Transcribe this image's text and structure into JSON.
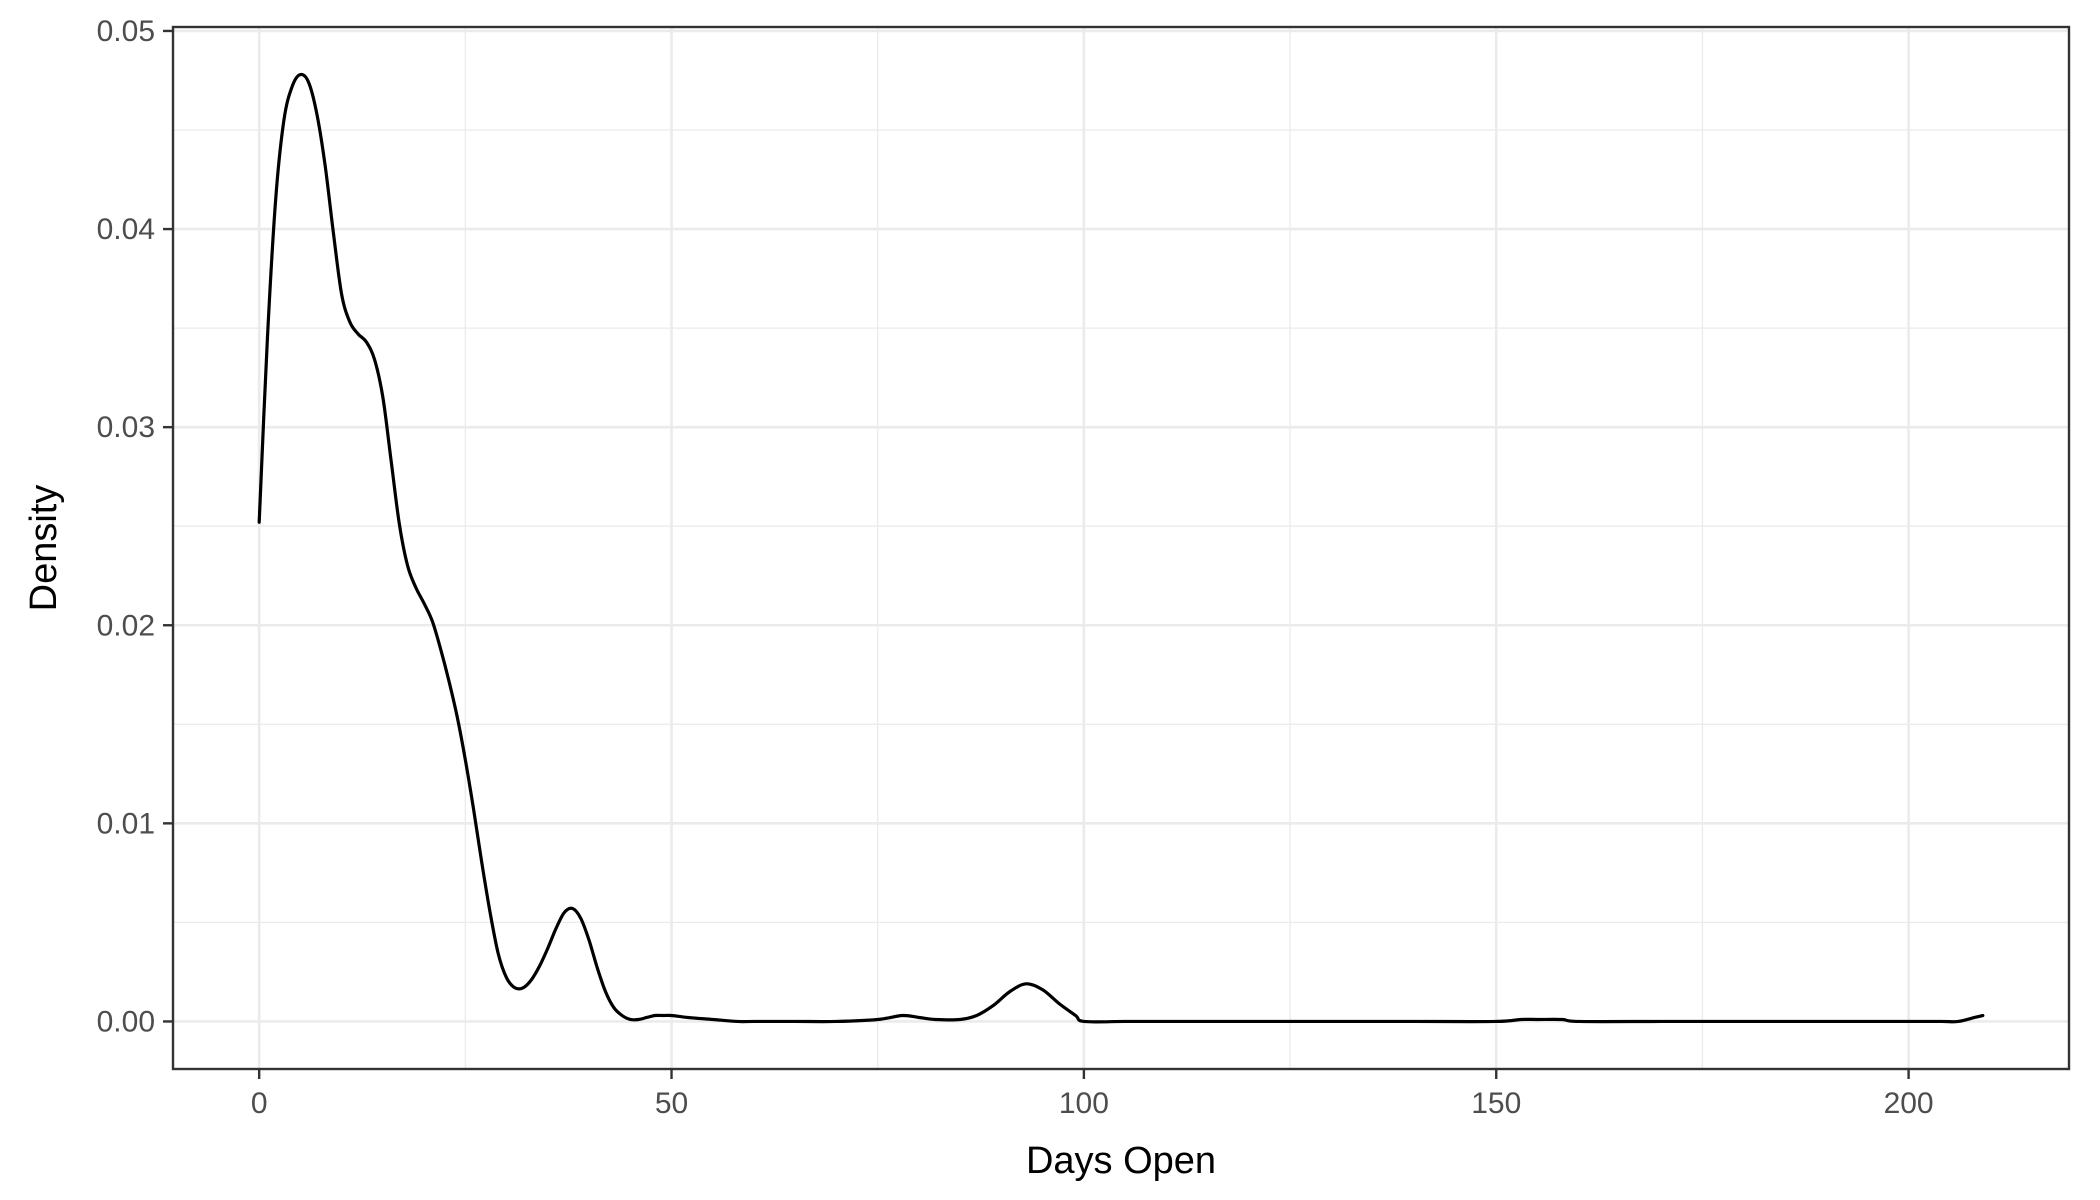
{
  "chart_data": {
    "type": "line",
    "title": "",
    "xlabel": "Days Open",
    "ylabel": "Density",
    "xlim": [
      -10.45,
      219.45
    ],
    "ylim": [
      -0.0024,
      0.0502
    ],
    "x_ticks": [
      0,
      50,
      100,
      150,
      200
    ],
    "x_tick_labels": [
      "0",
      "50",
      "100",
      "150",
      "200"
    ],
    "x_minor_ticks": [
      25,
      75,
      125,
      175
    ],
    "y_ticks": [
      0.0,
      0.01,
      0.02,
      0.03,
      0.04,
      0.05
    ],
    "y_tick_labels": [
      "0.00",
      "0.01",
      "0.02",
      "0.03",
      "0.04",
      "0.05"
    ],
    "y_minor_ticks": [
      0.005,
      0.015,
      0.025,
      0.035,
      0.045
    ],
    "grid": true,
    "legend": "none",
    "series": [
      {
        "color": "#000000",
        "x": [
          0,
          1,
          2,
          3,
          4,
          5,
          6,
          7,
          8,
          9,
          10,
          11,
          12,
          13,
          14,
          15,
          16,
          17,
          18,
          19,
          20,
          21,
          22,
          23,
          24,
          25,
          26,
          27,
          28,
          29,
          30,
          31,
          32,
          33,
          34,
          35,
          36,
          37,
          38,
          39,
          40,
          41,
          42,
          43,
          44,
          45,
          46,
          47,
          48,
          49,
          50,
          52,
          55,
          58,
          60,
          65,
          70,
          75,
          78,
          80,
          82,
          85,
          87,
          89,
          91,
          93,
          95,
          97,
          99,
          100,
          105,
          110,
          120,
          130,
          140,
          150,
          153,
          155,
          158,
          160,
          170,
          180,
          190,
          200,
          204,
          206,
          208,
          209
        ],
        "y": [
          0.0252,
          0.0345,
          0.0415,
          0.0455,
          0.0472,
          0.0478,
          0.0474,
          0.0458,
          0.0432,
          0.0398,
          0.0367,
          0.0353,
          0.0347,
          0.0343,
          0.0334,
          0.0315,
          0.0283,
          0.0251,
          0.023,
          0.0219,
          0.0211,
          0.0202,
          0.0188,
          0.0172,
          0.0154,
          0.0132,
          0.0107,
          0.008,
          0.0055,
          0.0034,
          0.0022,
          0.0017,
          0.0017,
          0.0021,
          0.0028,
          0.0037,
          0.0047,
          0.0055,
          0.0057,
          0.0052,
          0.0041,
          0.0027,
          0.0015,
          0.0007,
          0.0003,
          0.0001,
          0.0001,
          0.0002,
          0.0003,
          0.0003,
          0.0003,
          0.0002,
          0.0001,
          0.0,
          0.0,
          0.0,
          0.0,
          0.0001,
          0.0003,
          0.0002,
          0.0001,
          0.0001,
          0.0003,
          0.0008,
          0.0015,
          0.0019,
          0.0016,
          0.0009,
          0.0003,
          0.0,
          0.0,
          0.0,
          0.0,
          0.0,
          0.0,
          0.0,
          0.0001,
          0.0001,
          0.0001,
          0.0,
          0.0,
          0.0,
          0.0,
          0.0,
          0.0,
          0.0,
          0.0002,
          0.0003
        ]
      }
    ]
  }
}
